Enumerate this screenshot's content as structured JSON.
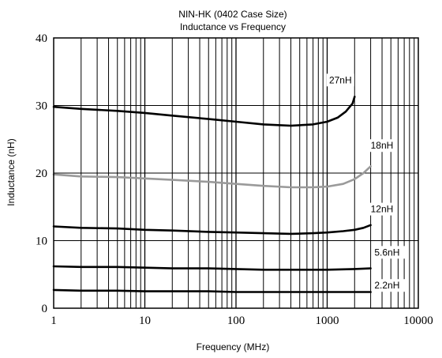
{
  "chart_data": {
    "type": "line",
    "title": "NIN-HK (0402 Case Size)",
    "subtitle": "Inductance vs Frequency",
    "xlabel": "Frequency (MHz)",
    "ylabel": "Inductance (nH)",
    "x_scale": "log",
    "xlim": [
      1,
      10000
    ],
    "ylim": [
      0,
      40
    ],
    "x_ticks": [
      "1",
      "10",
      "100",
      "1000",
      "10000"
    ],
    "y_ticks": [
      "0",
      "10",
      "20",
      "30",
      "40"
    ],
    "grid": true,
    "legend": "none",
    "series": [
      {
        "name": "27nH",
        "color": "#000000",
        "x": [
          1,
          2,
          5,
          10,
          20,
          50,
          100,
          200,
          400,
          700,
          1000,
          1300,
          1600,
          1900,
          2000
        ],
        "y": [
          29.8,
          29.5,
          29.2,
          28.9,
          28.5,
          28.0,
          27.6,
          27.2,
          27.0,
          27.2,
          27.6,
          28.2,
          29.1,
          30.3,
          31.3
        ]
      },
      {
        "name": "18nH",
        "color": "#9a9a9a",
        "x": [
          1,
          2,
          5,
          10,
          20,
          50,
          100,
          200,
          400,
          700,
          1000,
          1500,
          2000,
          2500,
          3000
        ],
        "y": [
          19.8,
          19.5,
          19.4,
          19.2,
          19.0,
          18.7,
          18.4,
          18.1,
          17.9,
          17.9,
          18.0,
          18.4,
          19.1,
          20.0,
          21.0
        ]
      },
      {
        "name": "12nH",
        "color": "#000000",
        "x": [
          1,
          2,
          5,
          10,
          20,
          50,
          100,
          200,
          400,
          700,
          1000,
          1500,
          2000,
          2500,
          3000
        ],
        "y": [
          12.1,
          11.9,
          11.8,
          11.6,
          11.5,
          11.3,
          11.2,
          11.1,
          11.0,
          11.1,
          11.2,
          11.4,
          11.6,
          11.9,
          12.3
        ]
      },
      {
        "name": "5.6nH",
        "color": "#000000",
        "x": [
          1,
          2,
          5,
          10,
          20,
          50,
          100,
          200,
          500,
          1000,
          2000,
          3000
        ],
        "y": [
          6.2,
          6.1,
          6.1,
          6.0,
          5.9,
          5.9,
          5.8,
          5.7,
          5.7,
          5.7,
          5.8,
          5.9
        ]
      },
      {
        "name": "2.2nH",
        "color": "#000000",
        "x": [
          1,
          2,
          5,
          10,
          20,
          50,
          100,
          200,
          500,
          1000,
          2000,
          3000
        ],
        "y": [
          2.7,
          2.6,
          2.6,
          2.5,
          2.5,
          2.5,
          2.4,
          2.4,
          2.4,
          2.4,
          2.4,
          2.4
        ]
      }
    ],
    "series_labels": [
      {
        "text": "27nH",
        "x": 1050,
        "y": 33.3
      },
      {
        "text": "18nH",
        "x": 3000,
        "y": 23.6
      },
      {
        "text": "12nH",
        "x": 3000,
        "y": 14.2
      },
      {
        "text": "5.6nH",
        "x": 3300,
        "y": 7.8
      },
      {
        "text": "2.2nH",
        "x": 3300,
        "y": 2.9
      }
    ]
  }
}
